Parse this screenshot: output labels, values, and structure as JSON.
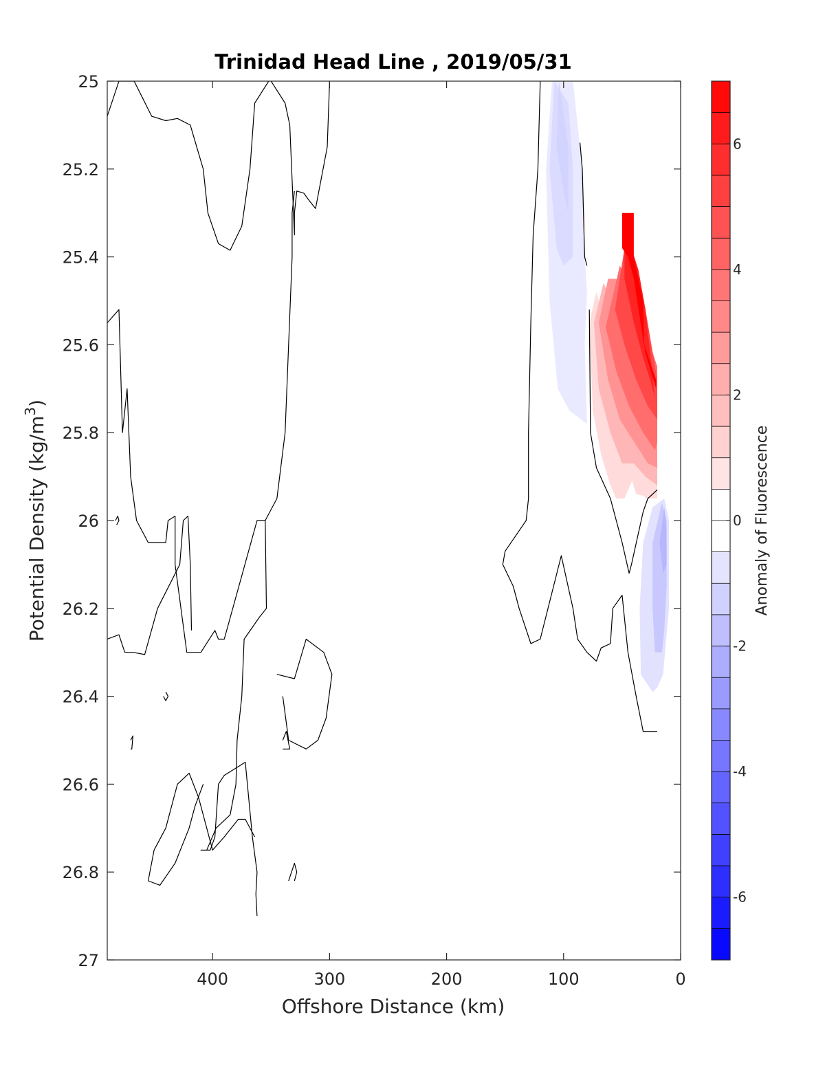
{
  "chart_data": {
    "type": "contour",
    "title": "Trinidad Head Line , 2019/05/31",
    "xlabel": "Offshore Distance (km)",
    "ylabel_prefix": "Potential Density (kg/m",
    "ylabel_sup": "3",
    "ylabel_suffix": ")",
    "colorbar_label": "Anomaly of Fluorescence",
    "x_reversed": true,
    "y_reversed": true,
    "xlim": [
      0,
      490
    ],
    "ylim": [
      25,
      27
    ],
    "x_ticks": [
      400,
      300,
      200,
      100,
      0
    ],
    "y_ticks": [
      "25",
      "25.2",
      "25.4",
      "25.6",
      "25.8",
      "26",
      "26.2",
      "26.4",
      "26.6",
      "26.8",
      "27"
    ],
    "colorbar": {
      "range": [
        -7,
        7
      ],
      "levels": 28,
      "ticks": [
        6,
        4,
        2,
        0,
        -2,
        -4,
        -6
      ],
      "colors": {
        "positive": "#ff0000",
        "zero": "#ffffff",
        "negative": "#0000ff"
      }
    },
    "zero_contours": [
      [
        [
          490,
          25.08
        ],
        [
          480,
          25.0
        ],
        [
          467,
          25.0
        ],
        [
          452,
          25.08
        ],
        [
          440,
          25.09
        ],
        [
          430,
          25.085
        ],
        [
          419,
          25.1
        ],
        [
          408,
          25.2
        ],
        [
          404,
          25.3
        ],
        [
          395,
          25.37
        ],
        [
          385,
          25.385
        ],
        [
          375,
          25.33
        ],
        [
          368,
          25.2
        ],
        [
          364,
          25.05
        ],
        [
          352,
          25.0
        ]
      ],
      [
        [
          490,
          25.55
        ],
        [
          480,
          25.52
        ],
        [
          477,
          25.8
        ],
        [
          473,
          25.7
        ],
        [
          470,
          25.9
        ],
        [
          465,
          26.0
        ],
        [
          455,
          26.05
        ],
        [
          440,
          26.05
        ],
        [
          438,
          26.0
        ],
        [
          432,
          25.99
        ],
        [
          432,
          26.1
        ],
        [
          422,
          26.3
        ],
        [
          410,
          26.3
        ],
        [
          398,
          26.25
        ],
        [
          395,
          26.27
        ],
        [
          390,
          26.27
        ],
        [
          362,
          26.0
        ],
        [
          355,
          26.0
        ]
      ],
      [
        [
          490,
          26.27
        ],
        [
          480,
          26.26
        ],
        [
          475,
          26.3
        ],
        [
          468,
          26.3
        ],
        [
          458,
          26.305
        ],
        [
          447,
          26.2
        ],
        [
          428,
          26.1
        ],
        [
          425,
          26.0
        ],
        [
          421,
          25.99
        ],
        [
          419,
          26.1
        ],
        [
          418,
          26.25
        ]
      ],
      [
        [
          483,
          26.0
        ],
        [
          481,
          25.99
        ],
        [
          480,
          26.0
        ],
        [
          482,
          26.01
        ]
      ],
      [
        [
          440,
          26.39
        ],
        [
          438,
          26.4
        ],
        [
          440,
          26.41
        ],
        [
          442,
          26.4
        ]
      ],
      [
        [
          470,
          26.5
        ],
        [
          468,
          26.49
        ],
        [
          469,
          26.52
        ],
        [
          470,
          26.52
        ]
      ],
      [
        [
          350,
          25.0
        ],
        [
          338,
          25.05
        ],
        [
          334,
          25.1
        ],
        [
          330,
          25.35
        ],
        [
          330,
          25.3
        ],
        [
          328,
          25.25
        ],
        [
          322,
          25.255
        ],
        [
          318,
          25.27
        ],
        [
          312,
          25.29
        ],
        [
          302,
          25.15
        ],
        [
          300,
          25.0
        ]
      ],
      [
        [
          330,
          25.25
        ],
        [
          332,
          25.3
        ],
        [
          332,
          25.4
        ],
        [
          335,
          25.6
        ],
        [
          338,
          25.8
        ],
        [
          345,
          25.95
        ],
        [
          355,
          26.0
        ],
        [
          354,
          26.2
        ],
        [
          360,
          26.22
        ],
        [
          373,
          26.27
        ],
        [
          375,
          26.4
        ],
        [
          379,
          26.5
        ],
        [
          380,
          26.6
        ],
        [
          385,
          26.67
        ],
        [
          397,
          26.7
        ],
        [
          405,
          26.75
        ],
        [
          410,
          26.75
        ],
        [
          402,
          26.75
        ],
        [
          398,
          26.72
        ],
        [
          395,
          26.6
        ],
        [
          390,
          26.58
        ],
        [
          372,
          26.55
        ],
        [
          366,
          26.72
        ],
        [
          362,
          26.8
        ],
        [
          363,
          26.85
        ],
        [
          362,
          26.9
        ]
      ],
      [
        [
          408,
          26.6
        ],
        [
          415,
          26.65
        ],
        [
          420,
          26.7
        ],
        [
          432,
          26.78
        ],
        [
          445,
          26.83
        ],
        [
          455,
          26.82
        ],
        [
          450,
          26.75
        ],
        [
          440,
          26.7
        ],
        [
          430,
          26.6
        ],
        [
          420,
          26.575
        ],
        [
          412,
          26.63
        ],
        [
          405,
          26.7
        ],
        [
          400,
          26.75
        ],
        [
          390,
          26.72
        ],
        [
          378,
          26.68
        ],
        [
          372,
          26.68
        ],
        [
          364,
          26.72
        ]
      ],
      [
        [
          345,
          26.35
        ],
        [
          330,
          26.36
        ],
        [
          320,
          26.27
        ],
        [
          305,
          26.3
        ],
        [
          298,
          26.35
        ],
        [
          303,
          26.45
        ],
        [
          310,
          26.5
        ],
        [
          320,
          26.52
        ],
        [
          335,
          26.5
        ],
        [
          340,
          26.4
        ]
      ],
      [
        [
          340,
          26.5
        ],
        [
          337,
          26.48
        ],
        [
          334,
          26.52
        ],
        [
          340,
          26.52
        ]
      ],
      [
        [
          335,
          26.82
        ],
        [
          330,
          26.78
        ],
        [
          328,
          26.8
        ],
        [
          330,
          26.82
        ]
      ],
      [
        [
          120,
          25.0
        ],
        [
          122,
          25.2
        ],
        [
          126,
          25.35
        ],
        [
          128,
          25.55
        ],
        [
          130,
          25.8
        ],
        [
          130,
          25.95
        ],
        [
          132,
          26.0
        ],
        [
          150,
          26.07
        ],
        [
          152,
          26.1
        ],
        [
          143,
          26.15
        ],
        [
          138,
          26.2
        ],
        [
          128,
          26.28
        ],
        [
          120,
          26.27
        ],
        [
          102,
          26.08
        ],
        [
          92,
          26.2
        ],
        [
          88,
          26.27
        ],
        [
          80,
          26.3
        ],
        [
          72,
          26.32
        ],
        [
          68,
          26.29
        ],
        [
          60,
          26.28
        ],
        [
          58,
          26.2
        ],
        [
          50,
          26.17
        ],
        [
          45,
          26.3
        ],
        [
          38,
          26.4
        ],
        [
          32,
          26.48
        ],
        [
          20,
          26.48
        ]
      ],
      [
        [
          86,
          25.14
        ],
        [
          84,
          25.2
        ],
        [
          82,
          25.4
        ],
        [
          80,
          25.42
        ]
      ],
      [
        [
          78,
          25.52
        ],
        [
          77,
          25.8
        ],
        [
          72,
          25.88
        ],
        [
          60,
          25.95
        ],
        [
          55,
          26.0
        ],
        [
          50,
          26.05
        ],
        [
          44,
          26.12
        ],
        [
          42,
          26.1
        ],
        [
          32,
          25.98
        ],
        [
          28,
          25.95
        ],
        [
          20,
          25.93
        ]
      ]
    ],
    "anomaly_fields": [
      {
        "value": 1,
        "poly": [
          [
            68,
            25.62
          ],
          [
            62,
            25.7
          ],
          [
            50,
            25.78
          ],
          [
            42,
            25.85
          ],
          [
            38,
            25.88
          ],
          [
            30,
            25.9
          ],
          [
            25,
            25.92
          ],
          [
            20,
            25.93
          ],
          [
            20,
            25.95
          ],
          [
            38,
            25.94
          ],
          [
            48,
            25.85
          ],
          [
            57,
            25.75
          ],
          [
            66,
            25.65
          ]
        ]
      },
      {
        "value": 1,
        "poly": [
          [
            78,
            25.55
          ],
          [
            75,
            25.75
          ],
          [
            68,
            25.85
          ],
          [
            60,
            25.92
          ],
          [
            55,
            25.95
          ],
          [
            48,
            25.95
          ],
          [
            40,
            25.9
          ],
          [
            30,
            25.95
          ],
          [
            20,
            25.95
          ],
          [
            20,
            25.75
          ],
          [
            35,
            25.72
          ],
          [
            50,
            25.65
          ],
          [
            65,
            25.55
          ],
          [
            72,
            25.48
          ]
        ]
      },
      {
        "value": 2,
        "poly": [
          [
            74,
            25.55
          ],
          [
            70,
            25.7
          ],
          [
            60,
            25.8
          ],
          [
            50,
            25.87
          ],
          [
            40,
            25.87
          ],
          [
            30,
            25.9
          ],
          [
            20,
            25.92
          ],
          [
            20,
            25.68
          ],
          [
            32,
            25.6
          ],
          [
            45,
            25.55
          ],
          [
            58,
            25.5
          ],
          [
            66,
            25.46
          ]
        ]
      },
      {
        "value": 3,
        "poly": [
          [
            70,
            25.55
          ],
          [
            62,
            25.68
          ],
          [
            52,
            25.77
          ],
          [
            40,
            25.82
          ],
          [
            28,
            25.87
          ],
          [
            20,
            25.88
          ],
          [
            20,
            25.66
          ],
          [
            34,
            25.55
          ],
          [
            44,
            25.48
          ],
          [
            55,
            25.45
          ],
          [
            62,
            25.45
          ]
        ]
      },
      {
        "value": 4,
        "poly": [
          [
            64,
            25.56
          ],
          [
            55,
            25.66
          ],
          [
            44,
            25.74
          ],
          [
            32,
            25.8
          ],
          [
            22,
            25.84
          ],
          [
            20,
            25.82
          ],
          [
            20,
            25.65
          ],
          [
            32,
            25.55
          ],
          [
            44,
            25.46
          ],
          [
            52,
            25.42
          ]
        ]
      },
      {
        "value": 5,
        "poly": [
          [
            56,
            25.52
          ],
          [
            48,
            25.6
          ],
          [
            38,
            25.68
          ],
          [
            28,
            25.74
          ],
          [
            20,
            25.77
          ],
          [
            20,
            25.68
          ],
          [
            30,
            25.52
          ],
          [
            38,
            25.43
          ],
          [
            48,
            25.38
          ]
        ]
      },
      {
        "value": 6,
        "poly": [
          [
            48,
            25.45
          ],
          [
            40,
            25.55
          ],
          [
            32,
            25.63
          ],
          [
            26,
            25.68
          ],
          [
            22,
            25.72
          ],
          [
            26,
            25.62
          ],
          [
            30,
            25.52
          ],
          [
            36,
            25.43
          ],
          [
            42,
            25.38
          ],
          [
            48,
            25.35
          ]
        ]
      },
      {
        "value": 7,
        "poly": [
          [
            50,
            25.3
          ],
          [
            40,
            25.3
          ],
          [
            40,
            25.4
          ],
          [
            32,
            25.5
          ],
          [
            31,
            25.6
          ],
          [
            21,
            25.68
          ],
          [
            21,
            25.7
          ],
          [
            30,
            25.62
          ],
          [
            36,
            25.52
          ],
          [
            40,
            25.45
          ],
          [
            45,
            25.4
          ],
          [
            50,
            25.38
          ]
        ]
      },
      {
        "value": 0.5,
        "poly": [
          [
            86,
            25.18
          ],
          [
            83,
            25.25
          ],
          [
            82,
            25.3
          ],
          [
            81,
            25.35
          ],
          [
            84,
            25.3
          ],
          [
            86,
            25.25
          ]
        ]
      },
      {
        "value": -0.6,
        "poly": [
          [
            110,
            25.0
          ],
          [
            115,
            25.2
          ],
          [
            112,
            25.5
          ],
          [
            105,
            25.7
          ],
          [
            95,
            25.75
          ],
          [
            80,
            25.78
          ],
          [
            82,
            25.6
          ],
          [
            80,
            25.48
          ],
          [
            82,
            25.4
          ],
          [
            84,
            25.2
          ],
          [
            90,
            25.05
          ],
          [
            92,
            25.0
          ]
        ]
      },
      {
        "value": -1.0,
        "poly": [
          [
            108,
            25.0
          ],
          [
            112,
            25.2
          ],
          [
            106,
            25.38
          ],
          [
            100,
            25.42
          ],
          [
            92,
            25.4
          ],
          [
            92,
            25.2
          ],
          [
            96,
            25.05
          ]
        ]
      },
      {
        "value": -1.2,
        "poly": [
          [
            104,
            25.0
          ],
          [
            106,
            25.15
          ],
          [
            100,
            25.25
          ],
          [
            96,
            25.3
          ],
          [
            96,
            25.15
          ]
        ]
      },
      {
        "value": -0.8,
        "poly": [
          [
            24,
            25.97
          ],
          [
            14,
            25.95
          ],
          [
            10,
            26.0
          ],
          [
            10,
            26.2
          ],
          [
            15,
            26.35
          ],
          [
            20,
            26.38
          ],
          [
            24,
            26.39
          ],
          [
            34,
            26.35
          ],
          [
            35,
            26.2
          ],
          [
            32,
            26.05
          ]
        ]
      },
      {
        "value": -1.5,
        "poly": [
          [
            16,
            25.96
          ],
          [
            12,
            26.0
          ],
          [
            12,
            26.15
          ],
          [
            14,
            26.25
          ],
          [
            16,
            26.3
          ],
          [
            22,
            26.3
          ],
          [
            24,
            26.2
          ],
          [
            24,
            26.05
          ]
        ]
      },
      {
        "value": -2.0,
        "poly": [
          [
            14,
            25.97
          ],
          [
            12,
            26.02
          ],
          [
            12,
            26.1
          ],
          [
            15,
            26.12
          ],
          [
            18,
            26.05
          ]
        ]
      }
    ]
  }
}
